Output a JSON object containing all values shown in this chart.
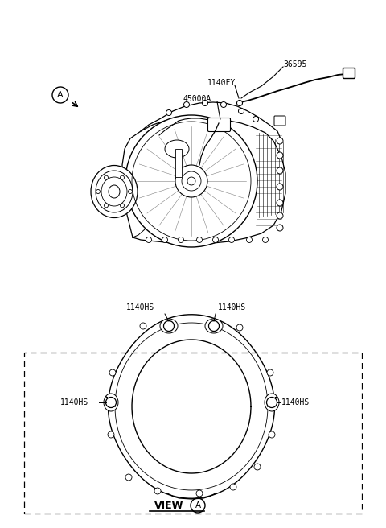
{
  "bg_color": "#ffffff",
  "lc": "#000000",
  "figsize": [
    4.8,
    6.56
  ],
  "dpi": 100,
  "labels": {
    "A": "A",
    "1140FY": "1140FY",
    "36595": "36595",
    "45000A": "45000A",
    "1140HS": "1140HS",
    "VIEW": "VIEW",
    "circleA": "A"
  }
}
